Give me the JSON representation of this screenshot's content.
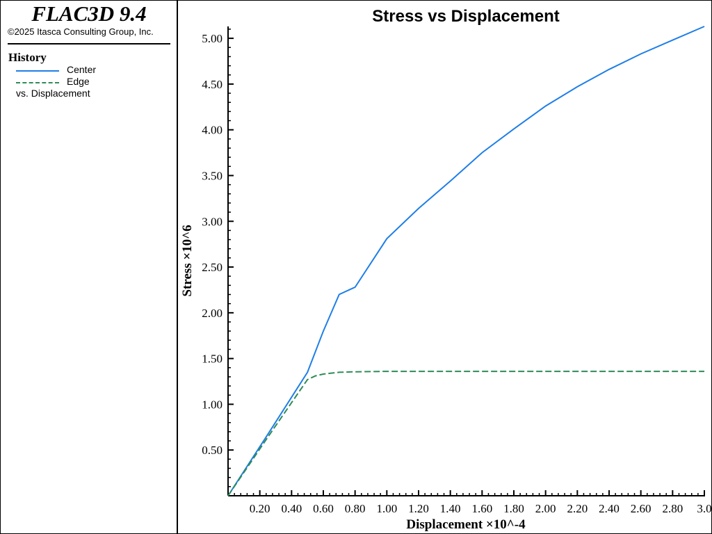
{
  "sidebar": {
    "logo": "FLAC3D 9.4",
    "copyright": "©2025 Itasca Consulting Group, Inc.",
    "legend_title": "History",
    "series": [
      {
        "label": "Center",
        "color": "#1e7ee8",
        "style": "solid"
      },
      {
        "label": "Edge",
        "color": "#2e8b57",
        "style": "dashed"
      }
    ],
    "vs_label": "vs. Displacement"
  },
  "chart_data": {
    "type": "line",
    "title": "Stress vs Displacement",
    "xlabel": "Displacement ×10^-4",
    "ylabel": "Stress ×10^6",
    "xlim": [
      0,
      3.0
    ],
    "ylim": [
      0,
      5.13
    ],
    "xticks": [
      "0.20",
      "0.40",
      "0.60",
      "0.80",
      "1.00",
      "1.20",
      "1.40",
      "1.60",
      "1.80",
      "2.00",
      "2.20",
      "2.40",
      "2.60",
      "2.80",
      "3.0"
    ],
    "yticks": [
      "0.50",
      "1.00",
      "1.50",
      "2.00",
      "2.50",
      "3.00",
      "3.50",
      "4.00",
      "4.50",
      "5.00"
    ],
    "series": [
      {
        "name": "Center",
        "color": "#1e7ee8",
        "x": [
          0,
          0.25,
          0.5,
          0.6,
          0.7,
          0.8,
          1.0,
          1.2,
          1.4,
          1.6,
          1.8,
          2.0,
          2.2,
          2.4,
          2.6,
          2.8,
          3.0
        ],
        "y": [
          0,
          0.67,
          1.35,
          1.8,
          2.2,
          2.28,
          2.81,
          3.14,
          3.44,
          3.75,
          4.01,
          4.26,
          4.47,
          4.66,
          4.83,
          4.98,
          5.13
        ]
      },
      {
        "name": "Edge",
        "color": "#2e8b57",
        "x": [
          0,
          0.25,
          0.5,
          0.55,
          0.6,
          0.7,
          0.8,
          1.0,
          1.5,
          2.0,
          2.5,
          3.0
        ],
        "y": [
          0,
          0.64,
          1.27,
          1.31,
          1.33,
          1.35,
          1.355,
          1.36,
          1.36,
          1.36,
          1.36,
          1.36
        ]
      }
    ]
  }
}
